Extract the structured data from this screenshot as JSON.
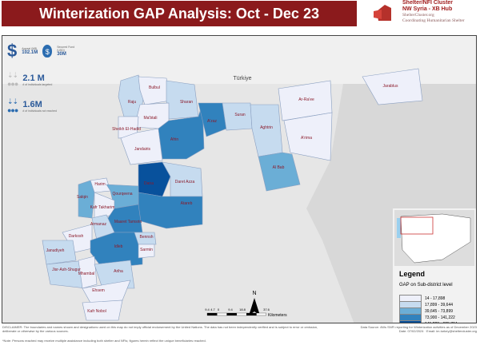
{
  "title": "Winterization GAP Analysis: Oct - Dec 23",
  "logo": {
    "line1": "Shelter/NFI Cluster",
    "line2": "NW Syria - XB Hub",
    "line3": "ShelterCluster.org",
    "line4": "Coordinating Humanitarian Shelter"
  },
  "stats": {
    "appeal_label": "Appeal (M$)",
    "appeal_value": "102.1M",
    "secured_label": "Secured Fund (USD)",
    "secured_value": "30M",
    "targeted_value": "2.1 M",
    "targeted_label": "# of individuals targeted",
    "not_reached_value": "1.6M",
    "not_reached_label": "# of individuals not reached"
  },
  "map": {
    "country_label": "Türkiye",
    "north": "N",
    "scale_ticks": [
      "9.4",
      "4.7",
      "0",
      "9.4",
      "18.8",
      "28.2",
      "37.6"
    ],
    "scale_unit": "Kilometers",
    "class_colors": [
      "#eef0fa",
      "#c6dbef",
      "#6baed6",
      "#3182bd",
      "#08519c"
    ],
    "subdistricts": [
      {
        "name": "Raju",
        "class": 1
      },
      {
        "name": "Bulbul",
        "class": 0
      },
      {
        "name": "Sharan",
        "class": 1
      },
      {
        "name": "Ma'btali",
        "class": 0
      },
      {
        "name": "Sheikh El-Hadid",
        "class": 0
      },
      {
        "name": "Jandairis",
        "class": 0
      },
      {
        "name": "Afrin",
        "class": 3
      },
      {
        "name": "A'zaz",
        "class": 3
      },
      {
        "name": "Suran",
        "class": 1
      },
      {
        "name": "Aghtrin",
        "class": 1
      },
      {
        "name": "Ar-Ra'ee",
        "class": 0
      },
      {
        "name": "A'rima",
        "class": 0
      },
      {
        "name": "Al Bab",
        "class": 2
      },
      {
        "name": "Jarablus",
        "class": 0
      },
      {
        "name": "Dana",
        "class": 4
      },
      {
        "name": "Daret Azza",
        "class": 1
      },
      {
        "name": "Atareb",
        "class": 3
      },
      {
        "name": "Harim",
        "class": 0
      },
      {
        "name": "Qourqeena",
        "class": 2
      },
      {
        "name": "Salqin",
        "class": 2
      },
      {
        "name": "Kafr Takharim",
        "class": 0
      },
      {
        "name": "Maaret Tamsrin",
        "class": 3
      },
      {
        "name": "Armanaz",
        "class": 1
      },
      {
        "name": "Darkosh",
        "class": 0
      },
      {
        "name": "Janudiyeh",
        "class": 1
      },
      {
        "name": "Idleb",
        "class": 3
      },
      {
        "name": "Bennsh",
        "class": 1
      },
      {
        "name": "Sarmin",
        "class": 0
      },
      {
        "name": "Jisr-Ash-Shugur",
        "class": 1
      },
      {
        "name": "Mhambal",
        "class": 0
      },
      {
        "name": "Ariha",
        "class": 1
      },
      {
        "name": "Ehsem",
        "class": 0
      },
      {
        "name": "Kafr Nobol",
        "class": 0
      }
    ]
  },
  "legend": {
    "title": "Legend",
    "subtitle": "GAP on Sub-district level",
    "classes": [
      "14 - 17,898",
      "17,899 - 39,644",
      "39,645 - 73,899",
      "73,900 - 141,222",
      "141,223 - 625,704"
    ]
  },
  "footer": {
    "disclaimer": "DISCLAIMER: The boundaries and names shown and designations used on this map do not imply official endorsement by the United Nations. The data has not been independently verified and is subject to error or omission, deliberate or otherwise by the various sources.",
    "source": "Data Source: 4Ws SNFI reporting for Winterization activities as of December 2023",
    "date": "Date: 07/02/2024 · Email: im.turkey@sheltercluster.org",
    "note": "*Note: Persons reached may receive multiple assistance including both shelter and NFIs; figures herein reflect the unique beneficiaries reached."
  }
}
